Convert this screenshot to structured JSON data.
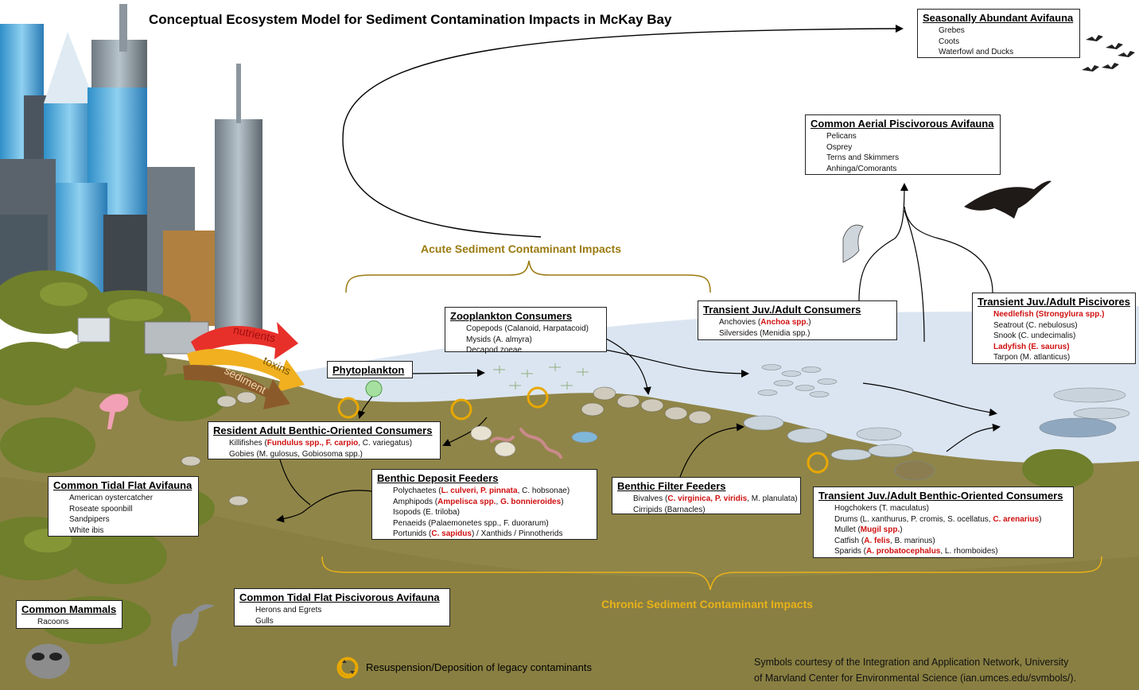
{
  "title": "Conceptual Ecosystem Model for Sediment Contamination Impacts in McKay Bay",
  "colors": {
    "acute": "#9a7a10",
    "chronic": "#e9b21a",
    "red_species": "#d01010",
    "water": "#dbe5f1",
    "sediment": "#8f8548",
    "nutrients": "#e8302a",
    "toxins": "#f0b020",
    "sediment_arrow": "#8b5a2b"
  },
  "flows": {
    "nutrients": "nutrients",
    "toxins": "toxins",
    "sediment": "sediment"
  },
  "impacts": {
    "acute": "Acute Sediment Contaminant Impacts",
    "chronic": "Chronic Sediment Contaminant Impacts"
  },
  "boxes": {
    "seasonal_avifauna": {
      "title": "Seasonally Abundant Avifauna",
      "items": [
        "Grebes",
        "Coots",
        "Waterfowl and Ducks"
      ]
    },
    "aerial_avifauna": {
      "title": "Common Aerial Piscivorous Avifauna",
      "items": [
        "Pelicans",
        "Osprey",
        "Terns and Skimmers",
        "Anhinga/Comorants"
      ]
    },
    "zooplankton": {
      "title": "Zooplankton Consumers",
      "items": [
        "Copepods (Calanoid, Harpatacoid)",
        "Mysids (A. almyra)",
        "Decapod zoeae"
      ]
    },
    "transient_consumers": {
      "title": "Transient Juv./Adult Consumers",
      "items": [
        {
          "parts": [
            {
              "t": "Anchovies ("
            },
            {
              "t": "Anchoa spp.",
              "red": true
            },
            {
              "t": ")"
            }
          ]
        },
        "Silversides (Menidia spp.)"
      ]
    },
    "transient_piscivores": {
      "title": "Transient Juv./Adult  Piscivores",
      "items": [
        {
          "parts": [
            {
              "t": "Needlefish (Strongylura spp.)",
              "red": true
            }
          ]
        },
        "Seatrout (C. nebulosus)",
        "Snook (C. undecimalis)",
        {
          "parts": [
            {
              "t": "Ladyfish (E. saurus)",
              "red": true
            }
          ]
        },
        "Tarpon (M. atlanticus)"
      ]
    },
    "phytoplankton": {
      "title": "Phytoplankton",
      "items": []
    },
    "resident_benthic": {
      "title": "Resident Adult Benthic-Oriented Consumers",
      "items": [
        {
          "parts": [
            {
              "t": "Killifishes ("
            },
            {
              "t": "Fundulus spp., F. carpio",
              "red": true
            },
            {
              "t": ", C. variegatus)"
            }
          ]
        },
        "Gobies (M. gulosus, Gobiosoma spp.)"
      ]
    },
    "tidal_flat_avifauna": {
      "title": "Common Tidal Flat Avifauna",
      "items": [
        "American oystercatcher",
        "Roseate spoonbill",
        "Sandpipers",
        "White ibis"
      ]
    },
    "deposit_feeders": {
      "title": "Benthic Deposit Feeders",
      "items": [
        {
          "parts": [
            {
              "t": "Polychaetes ("
            },
            {
              "t": "L. culveri, P. pinnata",
              "red": true
            },
            {
              "t": ", C. hobsonae)"
            }
          ]
        },
        {
          "parts": [
            {
              "t": "Amphipods ("
            },
            {
              "t": "Ampelisca spp.",
              "red": true
            },
            {
              "t": ", "
            },
            {
              "t": "G. bonnieroides",
              "red": true
            },
            {
              "t": ")"
            }
          ]
        },
        "Isopods (E. triloba)",
        "Penaeids (Palaemonetes spp., F. duorarum)",
        {
          "parts": [
            {
              "t": "Portunids ("
            },
            {
              "t": "C. sapidus",
              "red": true
            },
            {
              "t": ") / Xanthids / Pinnotherids"
            }
          ]
        }
      ]
    },
    "filter_feeders": {
      "title": "Benthic Filter Feeders",
      "items": [
        {
          "parts": [
            {
              "t": "Bivalves ("
            },
            {
              "t": "C. virginica, P. viridis",
              "red": true
            },
            {
              "t": ", M. planulata)"
            }
          ]
        },
        "Cirripids (Barnacles)"
      ]
    },
    "transient_benthic": {
      "title": "Transient Juv./Adult Benthic-Oriented Consumers",
      "items": [
        "Hogchokers (T. maculatus)",
        {
          "parts": [
            {
              "t": "Drums (L. xanthurus, P. cromis, S. ocellatus, "
            },
            {
              "t": "C. arenarius",
              "red": true
            },
            {
              "t": ")"
            }
          ]
        },
        {
          "parts": [
            {
              "t": "Mullet ("
            },
            {
              "t": "Mugil spp.",
              "red": true
            },
            {
              "t": ")"
            }
          ]
        },
        {
          "parts": [
            {
              "t": "Catfish ("
            },
            {
              "t": "A. felis",
              "red": true
            },
            {
              "t": ", B. marinus)"
            }
          ]
        },
        {
          "parts": [
            {
              "t": "Sparids ("
            },
            {
              "t": "A. probatocephalus",
              "red": true
            },
            {
              "t": ", L. rhomboides)"
            }
          ]
        }
      ]
    },
    "tidal_flat_piscivorous": {
      "title": "Common Tidal Flat Piscivorous Avifauna",
      "items": [
        "Herons and Egrets",
        "Gulls"
      ]
    },
    "mammals": {
      "title": "Common Mammals",
      "items": [
        "Racoons"
      ]
    }
  },
  "legend": {
    "resuspension": "Resuspension/Deposition of legacy contaminants"
  },
  "credit": {
    "line1": "Symbols courtesy of the Integration and Application Network, University",
    "line2": "of Marvland Center for Environmental Science (ian.umces.edu/svmbols/)."
  }
}
